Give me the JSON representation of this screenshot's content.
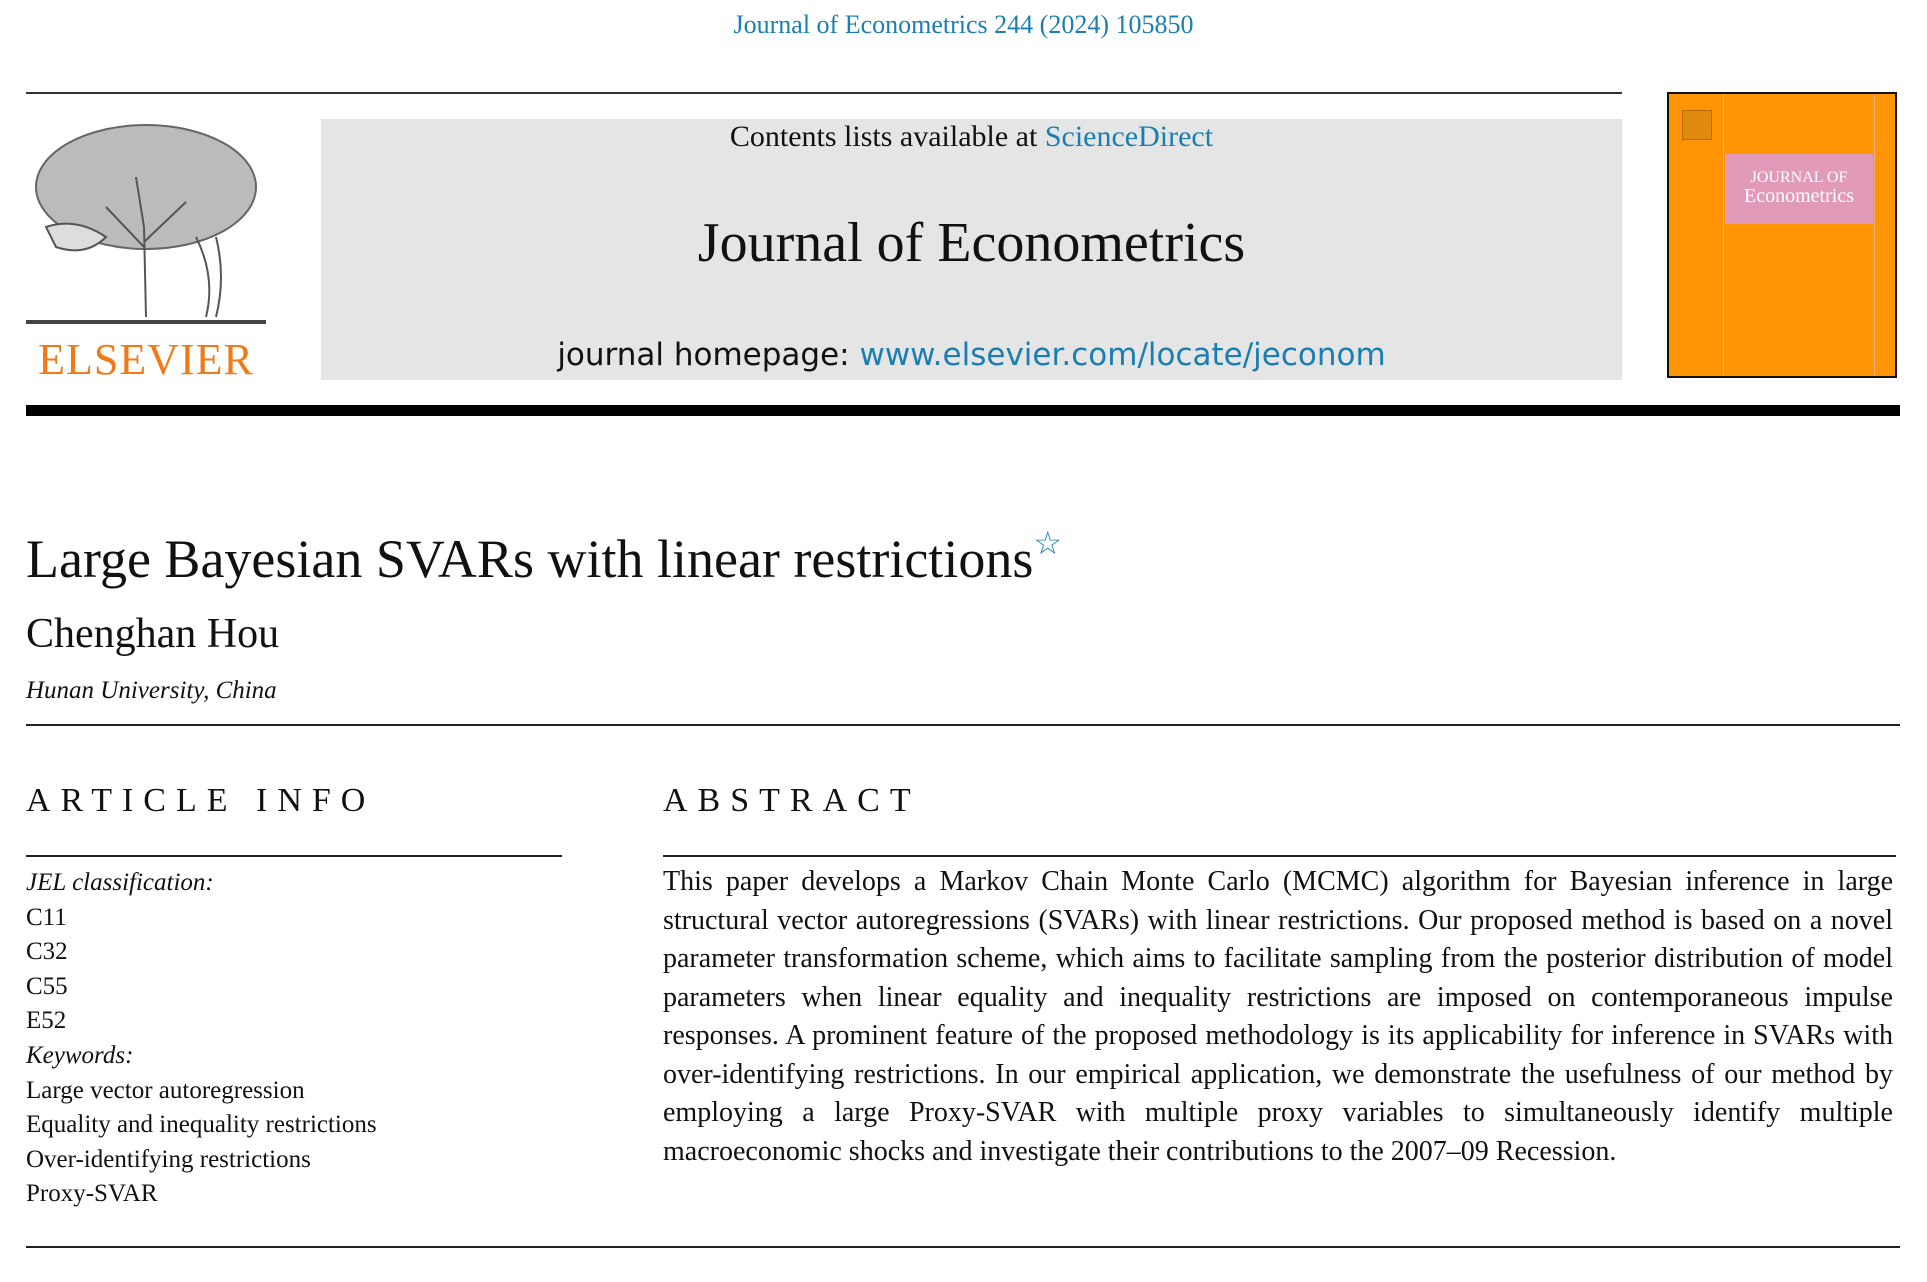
{
  "citation": "Journal of Econometrics 244 (2024) 105850",
  "header": {
    "publisher_logo_text": "ELSEVIER",
    "contents_prefix": "Contents lists available at",
    "contents_link": "ScienceDirect",
    "journal_title": "Journal of Econometrics",
    "homepage_prefix": "journal homepage:",
    "homepage_link": "www.elsevier.com/locate/jeconom",
    "cover": {
      "line1": "JOURNAL OF",
      "line2": "Econometrics",
      "color": "#ff9505",
      "band_color": "#e19ab8"
    }
  },
  "article": {
    "title": "Large Bayesian SVARs with linear restrictions",
    "title_note": "☆",
    "author": "Chenghan Hou",
    "affiliation": "Hunan University, China"
  },
  "article_info": {
    "heading": "ARTICLE INFO",
    "jel_label": "JEL classification:",
    "jel_codes": [
      "C11",
      "C32",
      "C55",
      "E52"
    ],
    "keywords_label": "Keywords:",
    "keywords": [
      "Large vector autoregression",
      "Equality and inequality restrictions",
      "Over-identifying restrictions",
      "Proxy-SVAR"
    ]
  },
  "abstract": {
    "heading": "ABSTRACT",
    "text": "This paper develops a Markov Chain Monte Carlo (MCMC) algorithm for Bayesian inference in large structural vector autoregressions (SVARs) with linear restrictions. Our proposed method is based on a novel parameter transformation scheme, which aims to facilitate sampling from the posterior distribution of model parameters when linear equality and inequality restrictions are imposed on contemporaneous impulse responses. A prominent feature of the proposed methodology is its applicability for inference in SVARs with over-identifying restrictions. In our empirical application, we demonstrate the usefulness of our method by employing a large Proxy-SVAR with multiple proxy variables to simultaneously identify multiple macroeconomic shocks and investigate their contributions to the 2007–09 Recession."
  },
  "colors": {
    "link": "#1a7fb0",
    "elsevier_orange": "#f07a18",
    "header_bg": "#e5e5e5"
  }
}
